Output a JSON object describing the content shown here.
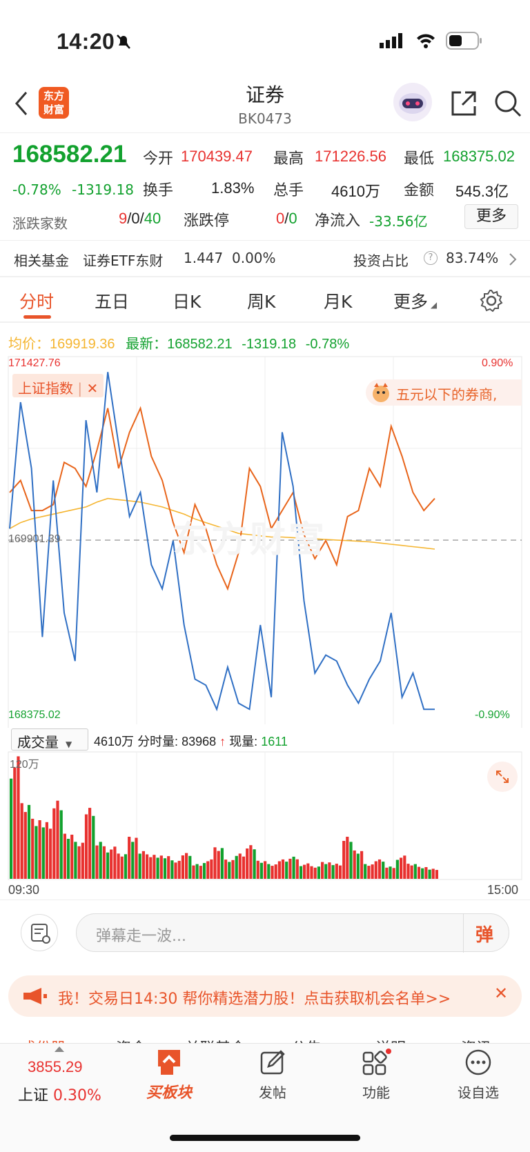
{
  "status": {
    "time": "14:20"
  },
  "header": {
    "title": "证券",
    "code": "BK0473",
    "logo_text": "东方财富"
  },
  "quote": {
    "price": "168582.21",
    "change_pct": "-0.78%",
    "change": "-1319.18",
    "open_label": "今开",
    "open": "170439.47",
    "high_label": "最高",
    "high": "171226.56",
    "low_label": "最低",
    "low": "168375.02",
    "turnover_label": "换手",
    "turnover": "1.83%",
    "volume_label": "总手",
    "volume": "4610万",
    "amount_label": "金额",
    "amount": "545.3亿",
    "updown_label": "涨跌家数",
    "up": "9",
    "flat": "0",
    "down": "40",
    "slash": "/",
    "limit_label": "涨跌停",
    "limit_up": "0",
    "limit_down": "0",
    "netflow_label": "净流入",
    "netflow": "-33.56亿",
    "more_button": "更多"
  },
  "fund": {
    "label": "相关基金",
    "name": "证券ETF东财",
    "value": "1.447",
    "change": "0.00%",
    "ratio_label": "投资占比",
    "ratio": "83.74%"
  },
  "tabs": [
    "分时",
    "五日",
    "日K",
    "周K",
    "月K",
    "更多"
  ],
  "chart_info": {
    "avg_label": "均价：",
    "avg": "169919.36",
    "latest_label": "最新：",
    "latest": "168582.21",
    "latest_change": "-1319.18",
    "latest_pct": "-0.78%",
    "ymax": "171427.76",
    "ymin": "168375.02",
    "mid": "169901.39",
    "pct_top": "0.90%",
    "pct_bottom": "-0.90%",
    "index_overlay": "上证指数",
    "promo": "五元以下的券商,",
    "watermark": "东方财富",
    "volume_selector": "成交量",
    "volume_total": "4610万",
    "volume_min_label": "分时量:",
    "volume_min": "83968",
    "volume_now_label": "现量:",
    "volume_now": "1611",
    "volume_max": "120万",
    "time_start": "09:30",
    "time_end": "15:00"
  },
  "comment": {
    "placeholder": "弹幕走一波...",
    "danmu_button": "弹"
  },
  "banner": {
    "text": "我！交易日14:30 帮你精选潜力股！点击获取机会名单>>"
  },
  "bottom_partial_tabs": [
    "成份股",
    "资金",
    "关联基金",
    "公告",
    "说明",
    "资讯"
  ],
  "bottom_nav": {
    "index_value": "3855.29",
    "index_name": "上证",
    "index_pct": "0.30%",
    "buy_block": "买板块",
    "post": "发帖",
    "function": "功能",
    "add_watch": "设自选"
  },
  "colors": {
    "accent": "#e8542a",
    "up": "#e8312f",
    "down": "#12a12e",
    "avg_line": "#f5b530",
    "price_line": "#2f6fc4",
    "index_line": "#e8641a"
  },
  "chart_data": {
    "type": "line",
    "title": "",
    "x_range": [
      "09:30",
      "15:00"
    ],
    "ylim": [
      168375.02,
      171427.76
    ],
    "series": [
      {
        "name": "",
        "values": [
          170000,
          171050,
          170500,
          169100,
          170400,
          169300,
          168900,
          170900,
          170300,
          171300,
          170700,
          170100,
          170300,
          169700,
          169500,
          169900,
          169200,
          168750,
          168700,
          168500,
          168850,
          168550,
          168500,
          169200,
          168600,
          170800,
          170350,
          169400,
          168800,
          168950,
          168900,
          168700,
          168550,
          168750,
          168900,
          169300,
          168600,
          168800,
          168500,
          168500
        ]
      },
      {
        "name": "上证指数",
        "values": [
          170300,
          170400,
          170150,
          170150,
          170200,
          170550,
          170500,
          170350,
          170650,
          171000,
          170500,
          170800,
          171000,
          170600,
          170400,
          170050,
          169800,
          170200,
          170000,
          169700,
          169500,
          169800,
          170500,
          170350,
          170000,
          170150,
          170300,
          169950,
          169750,
          169900,
          169700,
          170100,
          170150,
          170500,
          170350,
          170850,
          170600,
          170300,
          170150,
          170250
        ]
      },
      {
        "name": "",
        "values": [
          170000,
          170050,
          170080,
          170100,
          170120,
          170140,
          170160,
          170180,
          170220,
          170250,
          170240,
          170230,
          170220,
          170200,
          170180,
          170150,
          170120,
          170080,
          170050,
          170020,
          169990,
          169960,
          169950,
          169940,
          169930,
          169930,
          169925,
          169920,
          169915,
          169910,
          169905,
          169900,
          169895,
          169890,
          169880,
          169870,
          169860,
          169850,
          169840,
          169830
        ]
      }
    ],
    "volume": {
      "max_label": "120万",
      "bars": [
        0.95,
        0.6,
        0.5,
        0.45,
        0.65,
        0.35,
        0.3,
        0.55,
        0.3,
        0.25,
        0.2,
        0.35,
        0.22,
        0.2,
        0.18,
        0.15,
        0.2,
        0.12,
        0.15,
        0.25,
        0.16,
        0.2,
        0.28,
        0.14,
        0.12,
        0.15,
        0.18,
        0.12,
        0.1,
        0.14,
        0.12,
        0.35,
        0.22,
        0.12,
        0.15,
        0.1,
        0.18,
        0.12,
        0.1,
        0.08
      ]
    }
  }
}
